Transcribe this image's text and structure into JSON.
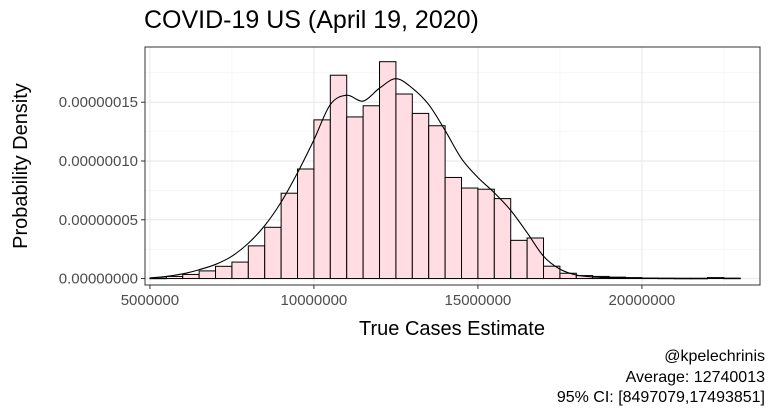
{
  "chart_data": {
    "type": "histogram",
    "title": "COVID-19 US (April 19, 2020)",
    "xlabel": "True Cases Estimate",
    "ylabel": "Probability Density",
    "xlim": [
      4850000,
      23600000
    ],
    "ylim": [
      -5.5e-09,
      1.97e-07
    ],
    "x_ticks": [
      5000000,
      10000000,
      15000000,
      20000000
    ],
    "x_tick_labels": [
      "5000000",
      "10000000",
      "15000000",
      "20000000"
    ],
    "y_ticks": [
      0,
      5e-08,
      1e-07,
      1.5e-07
    ],
    "y_tick_labels": [
      "0.00000000",
      "0.00000005",
      "0.00000010",
      "0.00000015"
    ],
    "grid": true,
    "bin_width": 500000,
    "bins": [
      {
        "x0": 5000000,
        "density": 3e-10
      },
      {
        "x0": 5500000,
        "density": 1.8e-09
      },
      {
        "x0": 6000000,
        "density": 3.5e-09
      },
      {
        "x0": 6500000,
        "density": 6.5e-09
      },
      {
        "x0": 7000000,
        "density": 1.04e-08
      },
      {
        "x0": 7500000,
        "density": 1.4e-08
      },
      {
        "x0": 8000000,
        "density": 2.78e-08
      },
      {
        "x0": 8500000,
        "density": 4.36e-08
      },
      {
        "x0": 9000000,
        "density": 7.26e-08
      },
      {
        "x0": 9500000,
        "density": 9.32e-08
      },
      {
        "x0": 10000000,
        "density": 1.35e-07
      },
      {
        "x0": 10500000,
        "density": 1.73e-07
      },
      {
        "x0": 11000000,
        "density": 1.375e-07
      },
      {
        "x0": 11500000,
        "density": 1.47e-07
      },
      {
        "x0": 12000000,
        "density": 1.845e-07
      },
      {
        "x0": 12500000,
        "density": 1.57e-07
      },
      {
        "x0": 13000000,
        "density": 1.405e-07
      },
      {
        "x0": 13500000,
        "density": 1.3e-07
      },
      {
        "x0": 14000000,
        "density": 8.6e-08
      },
      {
        "x0": 14500000,
        "density": 7.7e-08
      },
      {
        "x0": 15000000,
        "density": 7.6e-08
      },
      {
        "x0": 15500000,
        "density": 6.8e-08
      },
      {
        "x0": 16000000,
        "density": 3.25e-08
      },
      {
        "x0": 16500000,
        "density": 3.45e-08
      },
      {
        "x0": 17000000,
        "density": 1.05e-08
      },
      {
        "x0": 17500000,
        "density": 4.5e-09
      },
      {
        "x0": 18000000,
        "density": 2.5e-09
      },
      {
        "x0": 18500000,
        "density": 1.8e-09
      },
      {
        "x0": 19000000,
        "density": 1.2e-09
      },
      {
        "x0": 19500000,
        "density": 8e-10
      },
      {
        "x0": 20000000,
        "density": 4e-10
      },
      {
        "x0": 20500000,
        "density": 3e-10
      },
      {
        "x0": 21000000,
        "density": 2e-10
      },
      {
        "x0": 21500000,
        "density": 2e-10
      },
      {
        "x0": 22000000,
        "density": 8e-10
      },
      {
        "x0": 22500000,
        "density": 3e-10
      }
    ],
    "density_curve": {
      "x": [
        5000000,
        5500000,
        6000000,
        6500000,
        7000000,
        7500000,
        8000000,
        8500000,
        9000000,
        9500000,
        10000000,
        10500000,
        11000000,
        11500000,
        12000000,
        12500000,
        13000000,
        13500000,
        14000000,
        14500000,
        15000000,
        15500000,
        16000000,
        16500000,
        17000000,
        17500000,
        18000000,
        18500000,
        19000000,
        19500000,
        20000000,
        21000000,
        22000000,
        23000000
      ],
      "y": [
        5e-10,
        1.8e-09,
        4e-09,
        7.5e-09,
        1.2e-08,
        1.9e-08,
        3e-08,
        4.5e-08,
        6.5e-08,
        9e-08,
        1.18e-07,
        1.48e-07,
        1.56e-07,
        1.51e-07,
        1.62e-07,
        1.7e-07,
        1.62e-07,
        1.48e-07,
        1.26e-07,
        1.02e-07,
        8.6e-08,
        7.3e-08,
        5.8e-08,
        3.9e-08,
        1.9e-08,
        8e-09,
        3e-09,
        1.4e-09,
        8e-10,
        4e-10,
        2e-10,
        1e-10,
        1e-10,
        1e-10
      ]
    },
    "colors": {
      "bar_fill": "#ffdde2",
      "bar_stroke": "#000000",
      "curve_stroke": "#000000",
      "panel_border": "#333333",
      "grid_major": "#ebebeb",
      "grid_minor": "#f2f2f2"
    }
  },
  "caption": {
    "handle": "@kpelechrinis",
    "average": "Average: 12740013",
    "ci": "95% CI: [8497079,17493851]"
  }
}
